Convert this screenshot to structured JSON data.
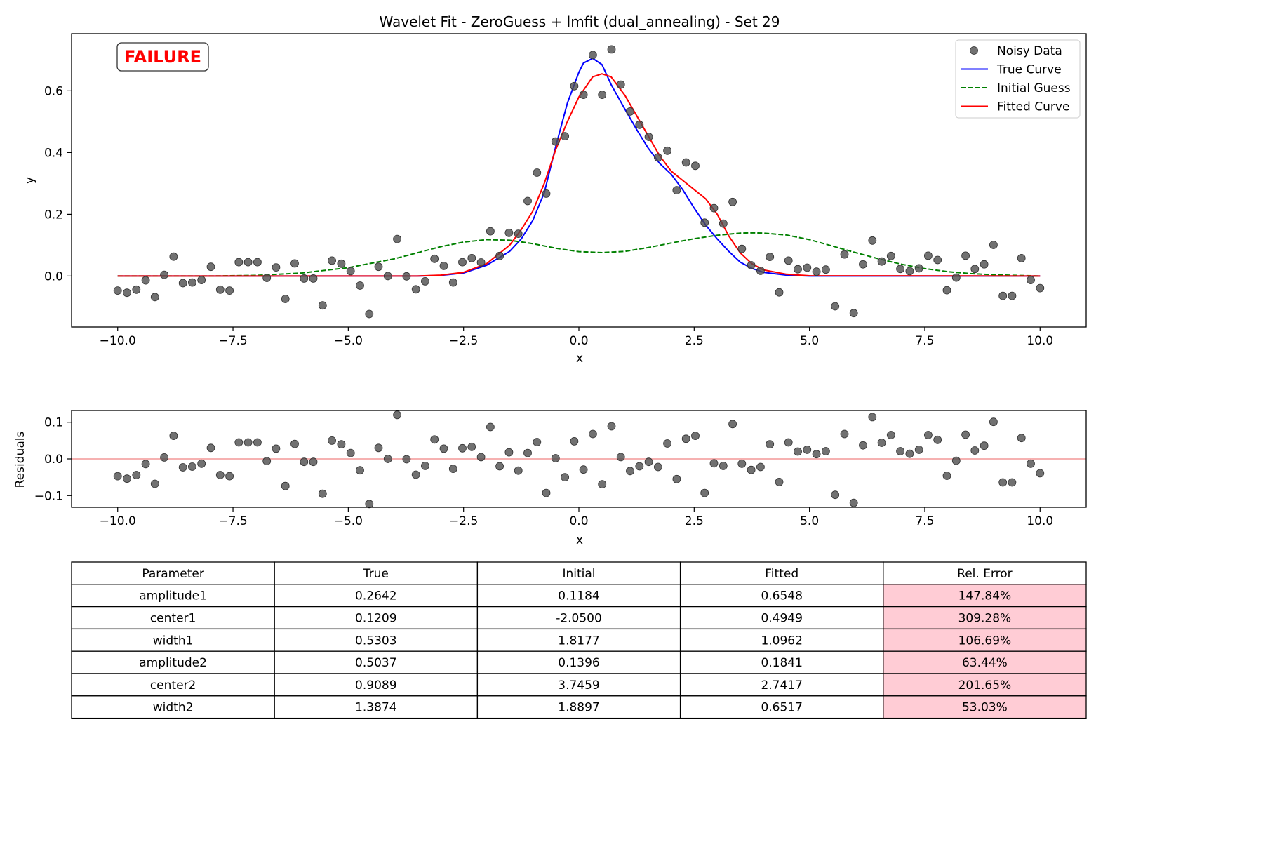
{
  "figure": {
    "title": "Wavelet Fit - ZeroGuess + lmfit (dual_annealing) - Set 29",
    "status_badge": "FAILURE",
    "colors": {
      "noisy_data": "#4d4d4d",
      "true_curve": "#0000ff",
      "initial_guess": "#008000",
      "fitted_curve": "#ff0000",
      "residual_zero_line": "#f4a6a6",
      "badge_text": "#ff0000",
      "error_cell_bg": "#ffccd5"
    }
  },
  "chart_data": [
    {
      "type": "line",
      "title": "Wavelet Fit - ZeroGuess + lmfit (dual_annealing) - Set 29",
      "xlabel": "x",
      "ylabel": "y",
      "xlim": [
        -11.0,
        11.0
      ],
      "ylim": [
        -0.165,
        0.785
      ],
      "xticks": [
        -10.0,
        -7.5,
        -5.0,
        -2.5,
        0.0,
        2.5,
        5.0,
        7.5,
        10.0
      ],
      "xtick_labels": [
        "−10.0",
        "−7.5",
        "−5.0",
        "−2.5",
        "0.0",
        "2.5",
        "5.0",
        "7.5",
        "10.0"
      ],
      "yticks": [
        0.0,
        0.2,
        0.4,
        0.6
      ],
      "ytick_labels": [
        "0.0",
        "0.2",
        "0.4",
        "0.6"
      ],
      "grid": false,
      "legend_position": "top-right",
      "series": [
        {
          "name": "Noisy Data",
          "kind": "scatter",
          "color": "#4d4d4d",
          "x": [
            -10.0,
            -9.798,
            -9.596,
            -9.394,
            -9.192,
            -8.99,
            -8.788,
            -8.586,
            -8.384,
            -8.182,
            -7.98,
            -7.778,
            -7.576,
            -7.374,
            -7.172,
            -6.97,
            -6.768,
            -6.566,
            -6.364,
            -6.162,
            -5.96,
            -5.758,
            -5.556,
            -5.354,
            -5.152,
            -4.949,
            -4.747,
            -4.545,
            -4.343,
            -4.141,
            -3.939,
            -3.737,
            -3.535,
            -3.333,
            -3.131,
            -2.929,
            -2.727,
            -2.525,
            -2.323,
            -2.121,
            -1.919,
            -1.717,
            -1.515,
            -1.313,
            -1.111,
            -0.909,
            -0.707,
            -0.505,
            -0.303,
            -0.101,
            0.101,
            0.303,
            0.505,
            0.707,
            0.909,
            1.111,
            1.313,
            1.515,
            1.717,
            1.919,
            2.121,
            2.323,
            2.525,
            2.727,
            2.929,
            3.131,
            3.333,
            3.535,
            3.737,
            3.939,
            4.141,
            4.343,
            4.545,
            4.747,
            4.949,
            5.152,
            5.354,
            5.556,
            5.758,
            5.96,
            6.162,
            6.364,
            6.566,
            6.768,
            6.97,
            7.172,
            7.374,
            7.576,
            7.778,
            7.98,
            8.182,
            8.384,
            8.586,
            8.788,
            8.99,
            9.192,
            9.394,
            9.596,
            9.798,
            10.0
          ],
          "y": [
            -0.047,
            -0.054,
            -0.044,
            -0.014,
            -0.068,
            0.004,
            0.063,
            -0.023,
            -0.021,
            -0.013,
            0.03,
            -0.044,
            -0.047,
            0.045,
            0.045,
            0.045,
            -0.006,
            0.028,
            -0.074,
            0.041,
            -0.008,
            -0.008,
            -0.095,
            0.05,
            0.04,
            0.016,
            -0.031,
            -0.123,
            0.03,
            0.0,
            0.12,
            -0.001,
            -0.043,
            -0.017,
            0.056,
            0.033,
            -0.021,
            0.045,
            0.058,
            0.044,
            0.145,
            0.065,
            0.14,
            0.137,
            0.243,
            0.335,
            0.267,
            0.436,
            0.453,
            0.615,
            0.587,
            0.716,
            0.587,
            0.734,
            0.62,
            0.533,
            0.49,
            0.451,
            0.384,
            0.406,
            0.278,
            0.368,
            0.357,
            0.173,
            0.22,
            0.17,
            0.24,
            0.088,
            0.035,
            0.017,
            0.062,
            -0.053,
            0.05,
            0.022,
            0.027,
            0.014,
            0.021,
            -0.098,
            0.07,
            -0.12,
            0.038,
            0.115,
            0.047,
            0.065,
            0.023,
            0.016,
            0.025,
            0.066,
            0.052,
            -0.046,
            -0.005,
            0.066,
            0.023,
            0.038,
            0.101,
            -0.064,
            -0.064,
            0.058,
            -0.013,
            -0.039
          ]
        },
        {
          "name": "True Curve",
          "kind": "line",
          "style": "solid",
          "color": "#0000ff",
          "x": [
            -10.0,
            -3.5,
            -3.0,
            -2.5,
            -2.0,
            -1.5,
            -1.25,
            -1.0,
            -0.75,
            -0.5,
            -0.25,
            0.0,
            0.1,
            0.3,
            0.5,
            0.7,
            1.0,
            1.25,
            1.5,
            1.75,
            2.0,
            2.25,
            2.5,
            2.75,
            3.0,
            3.25,
            3.5,
            3.75,
            4.0,
            4.5,
            5.0,
            10.0
          ],
          "y": [
            0.0,
            0.0,
            0.002,
            0.01,
            0.035,
            0.08,
            0.12,
            0.18,
            0.27,
            0.42,
            0.56,
            0.66,
            0.69,
            0.705,
            0.685,
            0.62,
            0.54,
            0.475,
            0.415,
            0.365,
            0.33,
            0.28,
            0.22,
            0.165,
            0.12,
            0.08,
            0.045,
            0.025,
            0.012,
            0.003,
            0.0,
            0.0
          ]
        },
        {
          "name": "Initial Guess",
          "kind": "line",
          "style": "dashed",
          "color": "#008000",
          "x": [
            -10.0,
            -8.0,
            -7.0,
            -6.0,
            -5.0,
            -4.0,
            -3.0,
            -2.5,
            -2.0,
            -1.5,
            -1.0,
            -0.5,
            0.0,
            0.5,
            1.0,
            1.5,
            2.0,
            2.5,
            3.0,
            3.5,
            3.75,
            4.0,
            4.5,
            5.0,
            5.5,
            6.0,
            6.5,
            7.0,
            7.5,
            8.0,
            8.5,
            9.0,
            9.5,
            10.0
          ],
          "y": [
            0.0,
            0.0,
            0.002,
            0.01,
            0.027,
            0.056,
            0.095,
            0.11,
            0.118,
            0.116,
            0.105,
            0.09,
            0.079,
            0.076,
            0.08,
            0.092,
            0.107,
            0.121,
            0.132,
            0.139,
            0.14,
            0.139,
            0.133,
            0.118,
            0.097,
            0.076,
            0.056,
            0.038,
            0.024,
            0.014,
            0.008,
            0.004,
            0.002,
            0.0
          ]
        },
        {
          "name": "Fitted Curve",
          "kind": "line",
          "style": "solid",
          "color": "#ff0000",
          "x": [
            -10.0,
            -3.5,
            -3.0,
            -2.5,
            -2.0,
            -1.5,
            -1.25,
            -1.0,
            -0.75,
            -0.5,
            -0.25,
            0.0,
            0.3,
            0.5,
            0.7,
            1.0,
            1.25,
            1.5,
            1.75,
            2.0,
            2.25,
            2.5,
            2.75,
            3.0,
            3.25,
            3.5,
            3.75,
            4.0,
            4.5,
            5.0,
            10.0
          ],
          "y": [
            0.0,
            0.0,
            0.003,
            0.012,
            0.04,
            0.1,
            0.15,
            0.21,
            0.3,
            0.41,
            0.5,
            0.58,
            0.645,
            0.655,
            0.645,
            0.585,
            0.52,
            0.455,
            0.39,
            0.34,
            0.31,
            0.28,
            0.25,
            0.2,
            0.13,
            0.075,
            0.04,
            0.02,
            0.006,
            0.001,
            0.0
          ]
        }
      ]
    },
    {
      "type": "scatter",
      "xlabel": "x",
      "ylabel": "Residuals",
      "xlim": [
        -11.0,
        11.0
      ],
      "ylim": [
        -0.132,
        0.132
      ],
      "xticks": [
        -10.0,
        -7.5,
        -5.0,
        -2.5,
        0.0,
        2.5,
        5.0,
        7.5,
        10.0
      ],
      "xtick_labels": [
        "−10.0",
        "−7.5",
        "−5.0",
        "−2.5",
        "0.0",
        "2.5",
        "5.0",
        "7.5",
        "10.0"
      ],
      "yticks": [
        -0.1,
        0.0,
        0.1
      ],
      "ytick_labels": [
        "−0.1",
        "0.0",
        "0.1"
      ],
      "grid": false,
      "zero_line": 0.0,
      "series": [
        {
          "kind": "scatter",
          "color": "#4d4d4d",
          "x": [
            -10.0,
            -9.798,
            -9.596,
            -9.394,
            -9.192,
            -8.99,
            -8.788,
            -8.586,
            -8.384,
            -8.182,
            -7.98,
            -7.778,
            -7.576,
            -7.374,
            -7.172,
            -6.97,
            -6.768,
            -6.566,
            -6.364,
            -6.162,
            -5.96,
            -5.758,
            -5.556,
            -5.354,
            -5.152,
            -4.949,
            -4.747,
            -4.545,
            -4.343,
            -4.141,
            -3.939,
            -3.737,
            -3.535,
            -3.333,
            -3.131,
            -2.929,
            -2.727,
            -2.525,
            -2.323,
            -2.121,
            -1.919,
            -1.717,
            -1.515,
            -1.313,
            -1.111,
            -0.909,
            -0.707,
            -0.505,
            -0.303,
            -0.101,
            0.101,
            0.303,
            0.505,
            0.707,
            0.909,
            1.111,
            1.313,
            1.515,
            1.717,
            1.919,
            2.121,
            2.323,
            2.525,
            2.727,
            2.929,
            3.131,
            3.333,
            3.535,
            3.737,
            3.939,
            4.141,
            4.343,
            4.545,
            4.747,
            4.949,
            5.152,
            5.354,
            5.556,
            5.758,
            5.96,
            6.162,
            6.364,
            6.566,
            6.768,
            6.97,
            7.172,
            7.374,
            7.576,
            7.778,
            7.98,
            8.182,
            8.384,
            8.586,
            8.788,
            8.99,
            9.192,
            9.394,
            9.596,
            9.798,
            10.0
          ],
          "y": [
            -0.047,
            -0.054,
            -0.044,
            -0.014,
            -0.068,
            0.004,
            0.063,
            -0.023,
            -0.021,
            -0.013,
            0.03,
            -0.044,
            -0.047,
            0.045,
            0.045,
            0.045,
            -0.006,
            0.028,
            -0.074,
            0.041,
            -0.008,
            -0.008,
            -0.095,
            0.05,
            0.04,
            0.016,
            -0.031,
            -0.123,
            0.03,
            0.0,
            0.12,
            -0.001,
            -0.043,
            -0.019,
            0.053,
            0.028,
            -0.027,
            0.029,
            0.033,
            0.005,
            0.087,
            -0.02,
            0.018,
            -0.032,
            0.016,
            0.046,
            -0.093,
            0.002,
            -0.05,
            0.048,
            -0.029,
            0.068,
            -0.069,
            0.089,
            0.005,
            -0.033,
            -0.02,
            -0.008,
            -0.022,
            0.042,
            -0.055,
            0.055,
            0.063,
            -0.093,
            -0.012,
            -0.019,
            0.095,
            -0.013,
            -0.03,
            -0.022,
            0.04,
            -0.063,
            0.045,
            0.02,
            0.025,
            0.013,
            0.021,
            -0.098,
            0.068,
            -0.12,
            0.037,
            0.114,
            0.044,
            0.065,
            0.021,
            0.014,
            0.025,
            0.065,
            0.052,
            -0.046,
            -0.005,
            0.066,
            0.023,
            0.036,
            0.101,
            -0.064,
            -0.064,
            0.057,
            -0.013,
            -0.039
          ]
        }
      ]
    },
    {
      "type": "table",
      "columns": [
        "Parameter",
        "True",
        "Initial",
        "Fitted",
        "Rel. Error"
      ],
      "rows": [
        [
          "amplitude1",
          "0.2642",
          "0.1184",
          "0.6548",
          "147.84%"
        ],
        [
          "center1",
          "0.1209",
          "-2.0500",
          "0.4949",
          "309.28%"
        ],
        [
          "width1",
          "0.5303",
          "1.8177",
          "1.0962",
          "106.69%"
        ],
        [
          "amplitude2",
          "0.5037",
          "0.1396",
          "0.1841",
          "63.44%"
        ],
        [
          "center2",
          "0.9089",
          "3.7459",
          "2.7417",
          "201.65%"
        ],
        [
          "width2",
          "1.3874",
          "1.8897",
          "0.6517",
          "53.03%"
        ]
      ],
      "highlight_column": 4,
      "highlight_color": "#ffccd5"
    }
  ]
}
